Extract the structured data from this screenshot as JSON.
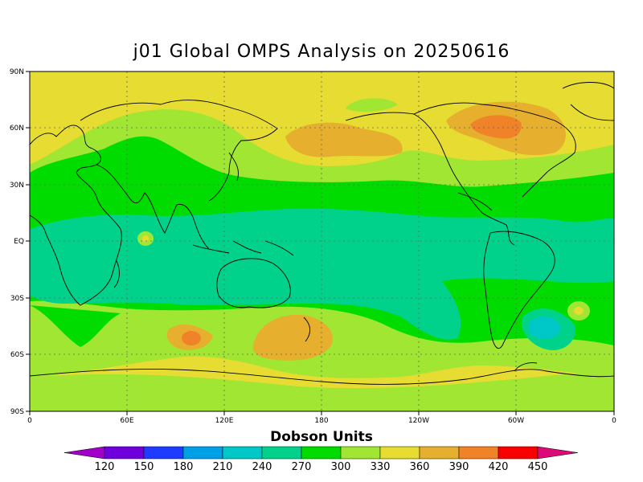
{
  "title": "j01 Global OMPS Analysis on 20250616",
  "lat_ticks": [
    "90N",
    "60N",
    "30N",
    "EQ",
    "30S",
    "60S",
    "90S"
  ],
  "lon_ticks": [
    "0",
    "60E",
    "120E",
    "180",
    "120W",
    "60W",
    "0"
  ],
  "colorbar": {
    "title": "Dobson Units",
    "labels": [
      "120",
      "150",
      "180",
      "210",
      "240",
      "270",
      "300",
      "330",
      "360",
      "390",
      "420",
      "450"
    ],
    "colors": [
      "#a000c8",
      "#6e00dc",
      "#1e3cff",
      "#00a0e6",
      "#00c8c8",
      "#00d28c",
      "#00dc00",
      "#a0e632",
      "#e6dc32",
      "#e6af2d",
      "#f08228",
      "#fa0000",
      "#dc0a78"
    ]
  }
}
